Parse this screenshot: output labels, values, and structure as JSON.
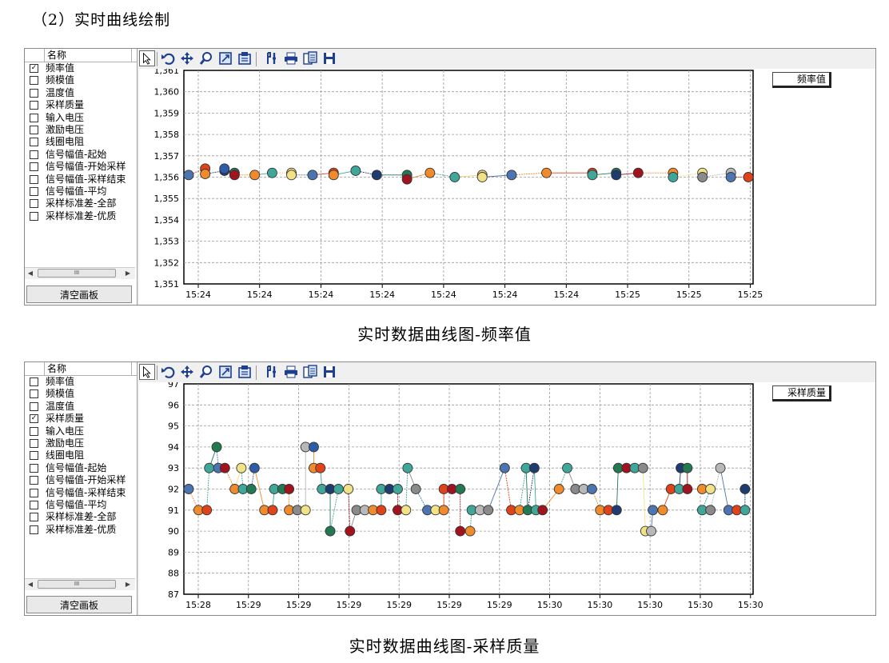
{
  "heading": "（2）实时曲线绘制",
  "captions": [
    "实时数据曲线图-频率值",
    "实时数据曲线图-采样质量"
  ],
  "sidebar": {
    "header": "名称",
    "items": [
      "频率值",
      "频模值",
      "温度值",
      "采样质量",
      "输入电压",
      "激励电压",
      "线圈电阻",
      "信号幅值-起始",
      "信号幅值-开始采样",
      "信号幅值-采样结束",
      "信号幅值-平均",
      "采样标准差-全部",
      "采样标准差-优质"
    ],
    "clear_button": "清空画板",
    "scroll_thumb": "III",
    "check_mark": "✓"
  },
  "toolbar": [
    "pointer-icon",
    "undo-icon",
    "move-icon",
    "zoom-icon",
    "zoom-box-icon",
    "zoom-fit-icon",
    "properties-icon",
    "print-icon",
    "copy-icon",
    "save-icon"
  ],
  "palette": {
    "blue": "#2f5ca8",
    "orange": "#f08a2a",
    "teal": "#3fa79a",
    "red": "#a0131f",
    "green": "#237a52",
    "yellow": "#f2e286",
    "gray": "#8a8a8a",
    "lightgray": "#b8b8b8",
    "navy": "#1f3c70",
    "tomato": "#e0421a",
    "pale": "#f7d47a",
    "steel": "#4c74b0"
  },
  "chart_data": [
    {
      "type": "scatter",
      "checked_index": 0,
      "legend": "频率值",
      "ylim": [
        1351,
        1361
      ],
      "yticks": [
        "1,351",
        "1,352",
        "1,353",
        "1,354",
        "1,355",
        "1,356",
        "1,357",
        "1,358",
        "1,359",
        "1,360",
        "1,361"
      ],
      "xticks": [
        "15:24",
        "15:24",
        "15:24",
        "15:24",
        "15:24",
        "15:24",
        "15:24",
        "15:25",
        "15:25",
        "15:25"
      ],
      "points": [
        {
          "x": 0,
          "y": 1356.1,
          "c": "steel"
        },
        {
          "x": 0.18,
          "y": 1356.4,
          "c": "tomato"
        },
        {
          "x": 0.18,
          "y": 1356.15,
          "c": "orange"
        },
        {
          "x": 0.39,
          "y": 1356.3,
          "c": "navy"
        },
        {
          "x": 0.39,
          "y": 1356.4,
          "c": "blue"
        },
        {
          "x": 0.5,
          "y": 1356.2,
          "c": "green"
        },
        {
          "x": 0.5,
          "y": 1356.1,
          "c": "red"
        },
        {
          "x": 0.72,
          "y": 1356.1,
          "c": "orange"
        },
        {
          "x": 0.91,
          "y": 1356.2,
          "c": "teal"
        },
        {
          "x": 1.12,
          "y": 1356.2,
          "c": "pale"
        },
        {
          "x": 1.12,
          "y": 1356.1,
          "c": "yellow"
        },
        {
          "x": 1.35,
          "y": 1356.1,
          "c": "steel"
        },
        {
          "x": 1.58,
          "y": 1356.2,
          "c": "tomato"
        },
        {
          "x": 1.58,
          "y": 1356.1,
          "c": "orange"
        },
        {
          "x": 1.82,
          "y": 1356.3,
          "c": "teal"
        },
        {
          "x": 2.05,
          "y": 1356.1,
          "c": "navy"
        },
        {
          "x": 2.38,
          "y": 1356.1,
          "c": "green"
        },
        {
          "x": 2.38,
          "y": 1355.9,
          "c": "red"
        },
        {
          "x": 2.63,
          "y": 1356.2,
          "c": "orange"
        },
        {
          "x": 2.9,
          "y": 1356.0,
          "c": "teal"
        },
        {
          "x": 3.2,
          "y": 1356.1,
          "c": "pale"
        },
        {
          "x": 3.2,
          "y": 1356.0,
          "c": "yellow"
        },
        {
          "x": 3.52,
          "y": 1356.1,
          "c": "steel"
        },
        {
          "x": 3.9,
          "y": 1356.2,
          "c": "orange"
        },
        {
          "x": 4.4,
          "y": 1356.2,
          "c": "tomato"
        },
        {
          "x": 4.4,
          "y": 1356.1,
          "c": "teal"
        },
        {
          "x": 4.66,
          "y": 1356.2,
          "c": "green"
        },
        {
          "x": 4.66,
          "y": 1356.1,
          "c": "navy"
        },
        {
          "x": 4.9,
          "y": 1356.2,
          "c": "red"
        },
        {
          "x": 5.28,
          "y": 1356.2,
          "c": "orange"
        },
        {
          "x": 5.28,
          "y": 1356.0,
          "c": "teal"
        },
        {
          "x": 5.6,
          "y": 1356.2,
          "c": "yellow"
        },
        {
          "x": 5.6,
          "y": 1356.0,
          "c": "gray"
        },
        {
          "x": 5.91,
          "y": 1356.2,
          "c": "lightgray"
        },
        {
          "x": 5.91,
          "y": 1356.0,
          "c": "steel"
        },
        {
          "x": 6.1,
          "y": 1356.0,
          "c": "tomato"
        }
      ]
    },
    {
      "type": "scatter",
      "checked_index": 3,
      "legend": "采样质量",
      "ylim": [
        87,
        97
      ],
      "yticks": [
        "87",
        "88",
        "89",
        "90",
        "91",
        "92",
        "93",
        "94",
        "95",
        "96",
        "97"
      ],
      "xticks": [
        "15:28",
        "15:29",
        "15:29",
        "15:29",
        "15:29",
        "15:29",
        "15:29",
        "15:30",
        "15:30",
        "15:30",
        "15:30",
        "15:30"
      ],
      "points": [
        {
          "x": 0.0,
          "y": 92,
          "c": "steel"
        },
        {
          "x": 0.12,
          "y": 91,
          "c": "orange"
        },
        {
          "x": 0.22,
          "y": 91,
          "c": "tomato"
        },
        {
          "x": 0.25,
          "y": 93,
          "c": "teal"
        },
        {
          "x": 0.34,
          "y": 94,
          "c": "green"
        },
        {
          "x": 0.36,
          "y": 93,
          "c": "steel"
        },
        {
          "x": 0.44,
          "y": 93,
          "c": "red"
        },
        {
          "x": 0.56,
          "y": 92,
          "c": "orange"
        },
        {
          "x": 0.64,
          "y": 93,
          "c": "yellow"
        },
        {
          "x": 0.66,
          "y": 92,
          "c": "teal"
        },
        {
          "x": 0.76,
          "y": 92,
          "c": "green"
        },
        {
          "x": 0.8,
          "y": 93,
          "c": "blue"
        },
        {
          "x": 0.92,
          "y": 91,
          "c": "orange"
        },
        {
          "x": 1.02,
          "y": 91,
          "c": "tomato"
        },
        {
          "x": 1.04,
          "y": 92,
          "c": "teal"
        },
        {
          "x": 1.14,
          "y": 92,
          "c": "green"
        },
        {
          "x": 1.22,
          "y": 92,
          "c": "red"
        },
        {
          "x": 1.22,
          "y": 91,
          "c": "orange"
        },
        {
          "x": 1.32,
          "y": 91,
          "c": "gray"
        },
        {
          "x": 1.42,
          "y": 91,
          "c": "yellow"
        },
        {
          "x": 1.42,
          "y": 94,
          "c": "lightgray"
        },
        {
          "x": 1.52,
          "y": 94,
          "c": "blue"
        },
        {
          "x": 1.52,
          "y": 93,
          "c": "orange"
        },
        {
          "x": 1.6,
          "y": 93,
          "c": "tomato"
        },
        {
          "x": 1.62,
          "y": 92,
          "c": "teal"
        },
        {
          "x": 1.72,
          "y": 92,
          "c": "navy"
        },
        {
          "x": 1.72,
          "y": 90,
          "c": "green"
        },
        {
          "x": 1.82,
          "y": 92,
          "c": "teal"
        },
        {
          "x": 1.94,
          "y": 92,
          "c": "yellow"
        },
        {
          "x": 1.96,
          "y": 90,
          "c": "red"
        },
        {
          "x": 2.04,
          "y": 91,
          "c": "gray"
        },
        {
          "x": 2.14,
          "y": 91,
          "c": "lightgray"
        },
        {
          "x": 2.24,
          "y": 91,
          "c": "orange"
        },
        {
          "x": 2.34,
          "y": 91,
          "c": "tomato"
        },
        {
          "x": 2.34,
          "y": 92,
          "c": "teal"
        },
        {
          "x": 2.44,
          "y": 92,
          "c": "navy"
        },
        {
          "x": 2.54,
          "y": 92,
          "c": "teal"
        },
        {
          "x": 2.54,
          "y": 91,
          "c": "red"
        },
        {
          "x": 2.64,
          "y": 91,
          "c": "yellow"
        },
        {
          "x": 2.66,
          "y": 93,
          "c": "teal"
        },
        {
          "x": 2.76,
          "y": 92,
          "c": "gray"
        },
        {
          "x": 2.9,
          "y": 91,
          "c": "steel"
        },
        {
          "x": 3.0,
          "y": 91,
          "c": "yellow"
        },
        {
          "x": 3.1,
          "y": 91,
          "c": "orange"
        },
        {
          "x": 3.1,
          "y": 92,
          "c": "tomato"
        },
        {
          "x": 3.2,
          "y": 92,
          "c": "red"
        },
        {
          "x": 3.3,
          "y": 92,
          "c": "green"
        },
        {
          "x": 3.3,
          "y": 90,
          "c": "red"
        },
        {
          "x": 3.42,
          "y": 90,
          "c": "orange"
        },
        {
          "x": 3.44,
          "y": 91,
          "c": "teal"
        },
        {
          "x": 3.54,
          "y": 91,
          "c": "lightgray"
        },
        {
          "x": 3.64,
          "y": 91,
          "c": "gray"
        },
        {
          "x": 3.84,
          "y": 93,
          "c": "steel"
        },
        {
          "x": 3.92,
          "y": 91,
          "c": "tomato"
        },
        {
          "x": 4.02,
          "y": 91,
          "c": "orange"
        },
        {
          "x": 4.1,
          "y": 93,
          "c": "teal"
        },
        {
          "x": 4.12,
          "y": 91,
          "c": "green"
        },
        {
          "x": 4.2,
          "y": 93,
          "c": "navy"
        },
        {
          "x": 4.22,
          "y": 91,
          "c": "teal"
        },
        {
          "x": 4.3,
          "y": 91,
          "c": "red"
        },
        {
          "x": 4.5,
          "y": 92,
          "c": "orange"
        },
        {
          "x": 4.6,
          "y": 93,
          "c": "teal"
        },
        {
          "x": 4.7,
          "y": 92,
          "c": "gray"
        },
        {
          "x": 4.8,
          "y": 92,
          "c": "lightgray"
        },
        {
          "x": 4.9,
          "y": 92,
          "c": "steel"
        },
        {
          "x": 5.0,
          "y": 91,
          "c": "orange"
        },
        {
          "x": 5.1,
          "y": 91,
          "c": "tomato"
        },
        {
          "x": 5.2,
          "y": 91,
          "c": "navy"
        },
        {
          "x": 5.22,
          "y": 93,
          "c": "green"
        },
        {
          "x": 5.32,
          "y": 93,
          "c": "red"
        },
        {
          "x": 5.42,
          "y": 93,
          "c": "teal"
        },
        {
          "x": 5.52,
          "y": 93,
          "c": "gray"
        },
        {
          "x": 5.55,
          "y": 90,
          "c": "yellow"
        },
        {
          "x": 5.62,
          "y": 90,
          "c": "lightgray"
        },
        {
          "x": 5.64,
          "y": 91,
          "c": "steel"
        },
        {
          "x": 5.76,
          "y": 91,
          "c": "orange"
        },
        {
          "x": 5.86,
          "y": 92,
          "c": "tomato"
        },
        {
          "x": 5.96,
          "y": 92,
          "c": "teal"
        },
        {
          "x": 5.98,
          "y": 93,
          "c": "navy"
        },
        {
          "x": 6.06,
          "y": 93,
          "c": "green"
        },
        {
          "x": 6.06,
          "y": 92,
          "c": "red"
        },
        {
          "x": 6.24,
          "y": 92,
          "c": "orange"
        },
        {
          "x": 6.34,
          "y": 92,
          "c": "yellow"
        },
        {
          "x": 6.24,
          "y": 91,
          "c": "teal"
        },
        {
          "x": 6.34,
          "y": 91,
          "c": "gray"
        },
        {
          "x": 6.46,
          "y": 93,
          "c": "lightgray"
        },
        {
          "x": 6.56,
          "y": 91,
          "c": "steel"
        },
        {
          "x": 6.66,
          "y": 91,
          "c": "tomato"
        },
        {
          "x": 6.76,
          "y": 91,
          "c": "teal"
        },
        {
          "x": 6.76,
          "y": 92,
          "c": "navy"
        }
      ]
    }
  ]
}
